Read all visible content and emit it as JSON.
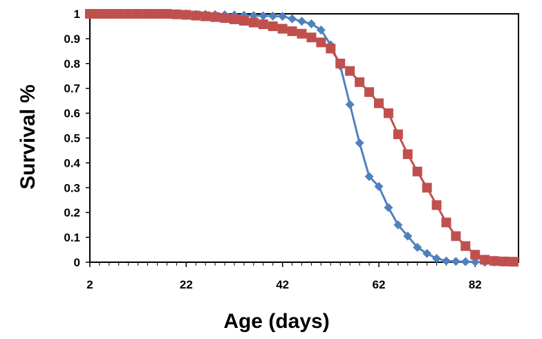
{
  "chart_data": {
    "type": "line",
    "xlabel": "Age (days)",
    "ylabel": "Survival %",
    "xlim": [
      2,
      91
    ],
    "ylim": [
      0,
      1
    ],
    "x_ticks": [
      "2",
      "22",
      "42",
      "62",
      "82"
    ],
    "x_tick_values": [
      2,
      22,
      42,
      62,
      82
    ],
    "y_ticks": [
      "0",
      "0.1",
      "0.2",
      "0.3",
      "0.4",
      "0.5",
      "0.6",
      "0.7",
      "0.8",
      "0.9",
      "1"
    ],
    "y_tick_values": [
      0,
      0.1,
      0.2,
      0.3,
      0.4,
      0.5,
      0.6,
      0.7,
      0.8,
      0.9,
      1
    ],
    "grid": false,
    "legend": "none",
    "series": [
      {
        "color": "#4f81bd",
        "marker": "diamond",
        "x": [
          2,
          4,
          6,
          8,
          10,
          12,
          14,
          16,
          18,
          20,
          22,
          24,
          26,
          28,
          30,
          32,
          34,
          36,
          38,
          40,
          42,
          44,
          46,
          48,
          50,
          52,
          54,
          56,
          58,
          60,
          62,
          64,
          66,
          68,
          70,
          72,
          74,
          76,
          78,
          80,
          82,
          84,
          86,
          88,
          90
        ],
        "y": [
          1,
          1,
          1,
          1,
          1,
          1,
          1,
          1,
          1,
          1,
          1,
          0.998,
          0.998,
          0.997,
          0.996,
          0.995,
          0.994,
          0.993,
          0.992,
          0.991,
          0.99,
          0.98,
          0.97,
          0.96,
          0.935,
          0.875,
          0.79,
          0.635,
          0.48,
          0.345,
          0.305,
          0.22,
          0.15,
          0.105,
          0.06,
          0.035,
          0.015,
          0.005,
          0.003,
          0.002,
          0.001,
          0,
          0,
          0,
          0
        ]
      },
      {
        "color": "#c0504d",
        "marker": "square",
        "x": [
          2,
          4,
          6,
          8,
          10,
          12,
          14,
          16,
          18,
          20,
          22,
          24,
          26,
          28,
          30,
          32,
          34,
          36,
          38,
          40,
          42,
          44,
          46,
          48,
          50,
          52,
          54,
          56,
          58,
          60,
          62,
          64,
          66,
          68,
          70,
          72,
          74,
          76,
          78,
          80,
          82,
          84,
          86,
          88,
          90
        ],
        "y": [
          1,
          1,
          1,
          1,
          1,
          1,
          1,
          1,
          1,
          0.998,
          0.996,
          0.993,
          0.99,
          0.987,
          0.983,
          0.978,
          0.972,
          0.965,
          0.958,
          0.95,
          0.94,
          0.93,
          0.92,
          0.905,
          0.885,
          0.86,
          0.8,
          0.77,
          0.725,
          0.685,
          0.64,
          0.6,
          0.515,
          0.435,
          0.365,
          0.3,
          0.23,
          0.16,
          0.105,
          0.065,
          0.03,
          0.01,
          0.005,
          0.003,
          0.002
        ]
      }
    ]
  }
}
